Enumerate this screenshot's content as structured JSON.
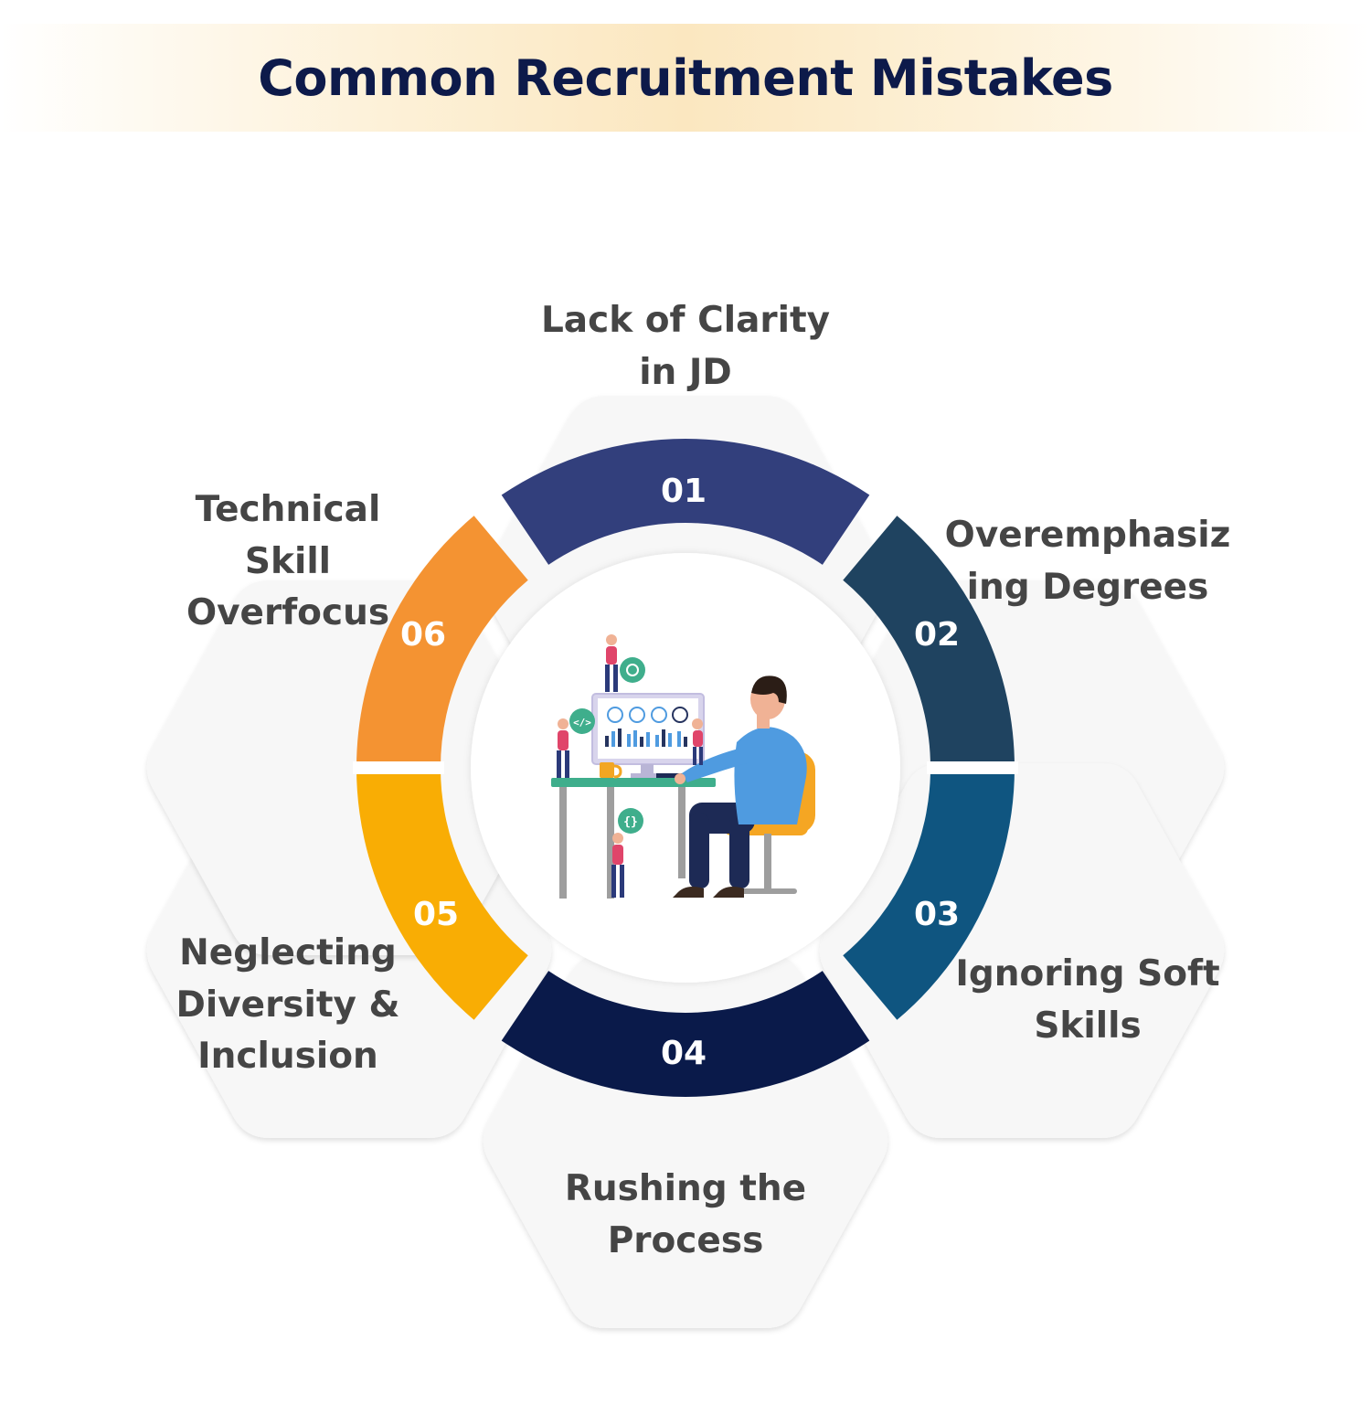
{
  "title": "Common Recruitment Mistakes",
  "colors": {
    "title_text": "#0d1a4a",
    "hexagon_fill": "#f7f7f7",
    "segment_01": "#323f7c",
    "segment_02": "#1f4360",
    "segment_03": "#0f5580",
    "segment_04": "#0a1a4a",
    "segment_05": "#f9ad04",
    "segment_06": "#f49332"
  },
  "items": [
    {
      "number": "01",
      "label_lines": [
        "Lack of Clarity",
        "in JD"
      ]
    },
    {
      "number": "02",
      "label_lines": [
        "Overemphasiz",
        "ing Degrees"
      ]
    },
    {
      "number": "03",
      "label_lines": [
        "Ignoring Soft",
        "Skills"
      ]
    },
    {
      "number": "04",
      "label_lines": [
        "Rushing the",
        "Process"
      ]
    },
    {
      "number": "05",
      "label_lines": [
        "Neglecting",
        "Diversity &",
        "Inclusion"
      ]
    },
    {
      "number": "06",
      "label_lines": [
        "Technical",
        "Skill",
        "Overfocus"
      ]
    }
  ],
  "center_illustration": "person-at-computer-with-dashboard-illustration"
}
